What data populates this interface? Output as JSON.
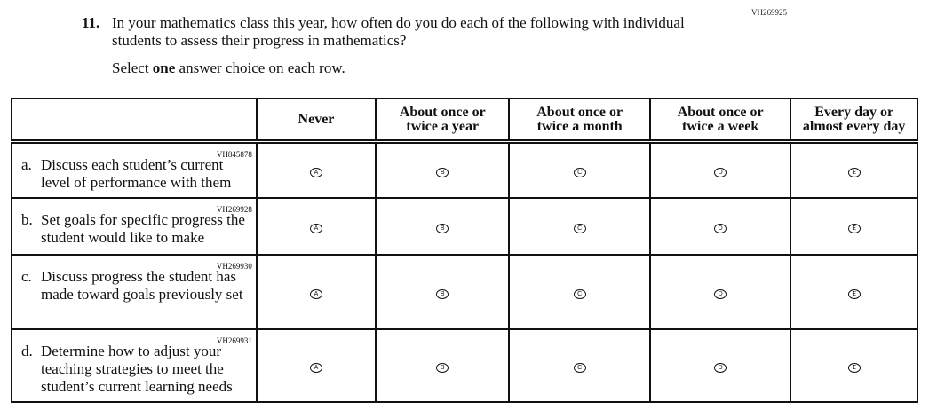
{
  "top_code": "VH269925",
  "question": {
    "number": "11.",
    "text": "In your mathematics class this year, how often do you do each of the following with individual students to assess their progress in mathematics?",
    "instruction_pre": "Select ",
    "instruction_bold": "one",
    "instruction_post": " answer choice on each row."
  },
  "columns": [
    "Never",
    "About once or twice a year",
    "About once or twice a month",
    "About once or twice a week",
    "Every day or almost every day"
  ],
  "options": [
    "A",
    "B",
    "C",
    "D",
    "E"
  ],
  "rows": [
    {
      "code": "VH845878",
      "letter": "a.",
      "text": "Discuss each student’s current level of performance with them"
    },
    {
      "code": "VH269928",
      "letter": "b.",
      "text": "Set goals for specific progress the student would like to make"
    },
    {
      "code": "VH269930",
      "letter": "c.",
      "text": "Discuss progress the student has made toward goals previously set"
    },
    {
      "code": "VH269931",
      "letter": "d.",
      "text": "Determine how to adjust your teaching strategies to meet the student’s current learning needs"
    }
  ]
}
